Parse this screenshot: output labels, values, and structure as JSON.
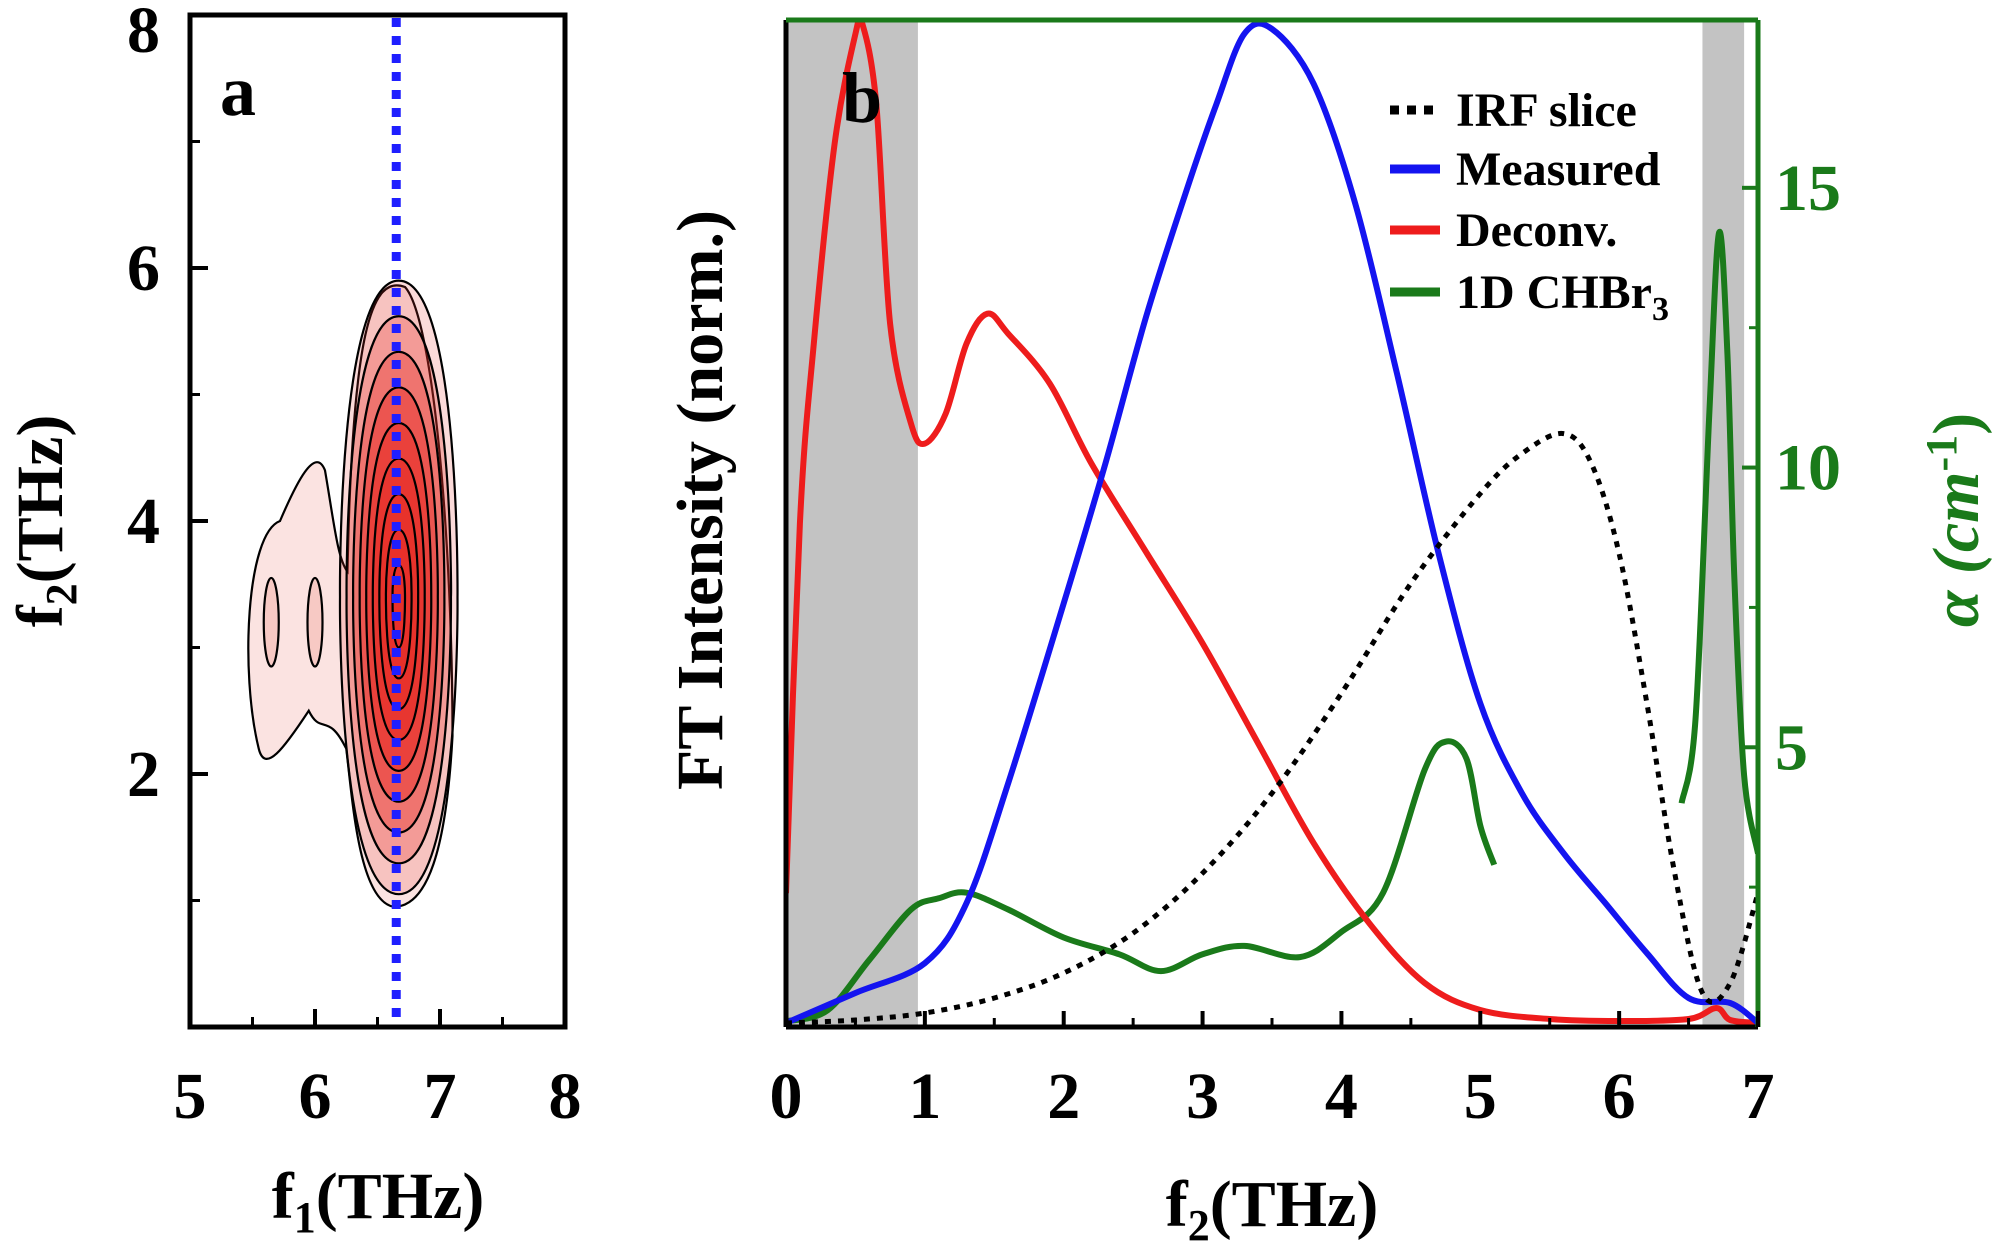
{
  "panel_a": {
    "letter": "a",
    "xlabel": {
      "main": "f",
      "sub": "1",
      "rest": "(THz)"
    },
    "ylabel": {
      "main": "f",
      "sub": "2",
      "rest": "(THz)"
    },
    "xticks": [
      "5",
      "6",
      "7",
      "8"
    ],
    "yticks": [
      "2",
      "4",
      "6",
      "8"
    ]
  },
  "panel_b": {
    "letter": "b",
    "xlabel": {
      "main": "f",
      "sub": "2",
      "rest": "(THz)"
    },
    "ylabel_left": "FT Intensity (norm.)",
    "ylabel_right": {
      "main": "α (cm",
      "sup": "-1",
      "rest": ")"
    },
    "xticks": [
      "0",
      "1",
      "2",
      "3",
      "4",
      "5",
      "6",
      "7"
    ],
    "yticks_right": [
      "5",
      "10",
      "15"
    ],
    "legend": [
      {
        "label": "IRF slice"
      },
      {
        "label": "Measured"
      },
      {
        "label": "Deconv."
      },
      {
        "label": "1D CHBr",
        "sub": "3"
      }
    ]
  },
  "chart_data": [
    {
      "type": "contour",
      "panel": "a",
      "xlim": [
        5,
        8
      ],
      "ylim": [
        0,
        8
      ],
      "x_minor_ticks": [
        5.5,
        6.5,
        7.5
      ],
      "y_minor_ticks": [
        1,
        3,
        5,
        7
      ],
      "cut_line": {
        "x": 6.65,
        "style": "dotted",
        "color": "#1f1fff"
      },
      "main_peak": {
        "x": 6.65,
        "y": 3.3
      },
      "side_features": [
        {
          "x": 5.65,
          "y": 3.2
        },
        {
          "x": 6.0,
          "y": 3.2
        }
      ],
      "contour_fill_color": "#e8302a",
      "contour_line_color": "#000000"
    },
    {
      "type": "line",
      "panel": "b",
      "xlim": [
        0,
        7
      ],
      "ylim_left": [
        0,
        1
      ],
      "ylim_right": [
        0,
        18
      ],
      "y_right_minor_ticks": [
        2.5,
        7.5,
        12.5
      ],
      "shaded_regions": [
        [
          0,
          0.95
        ],
        [
          6.6,
          6.9
        ]
      ],
      "series": [
        {
          "name": "IRF slice",
          "axis": "left",
          "color": "#000000",
          "style": "dotted",
          "x": [
            0,
            0.5,
            1.0,
            1.5,
            2.0,
            2.5,
            3.0,
            3.5,
            4.0,
            4.5,
            5.0,
            5.3,
            5.6,
            5.8,
            6.0,
            6.2,
            6.4,
            6.6,
            6.8,
            7.0
          ],
          "y": [
            0,
            0.003,
            0.01,
            0.025,
            0.05,
            0.09,
            0.15,
            0.23,
            0.33,
            0.44,
            0.53,
            0.57,
            0.59,
            0.56,
            0.47,
            0.32,
            0.15,
            0.03,
            0.04,
            0.13
          ]
        },
        {
          "name": "Measured",
          "axis": "left",
          "color": "#1414f0",
          "style": "solid",
          "x": [
            0,
            0.5,
            1.0,
            1.3,
            1.6,
            2.0,
            2.3,
            2.6,
            2.9,
            3.1,
            3.3,
            3.5,
            3.8,
            4.1,
            4.4,
            4.7,
            5.0,
            5.3,
            5.6,
            5.9,
            6.2,
            6.5,
            6.8,
            7.0
          ],
          "y": [
            0,
            0.03,
            0.06,
            0.12,
            0.24,
            0.42,
            0.56,
            0.71,
            0.84,
            0.92,
            0.99,
            0.995,
            0.94,
            0.82,
            0.65,
            0.47,
            0.32,
            0.23,
            0.17,
            0.12,
            0.07,
            0.025,
            0.02,
            0.0
          ]
        },
        {
          "name": "Deconv.",
          "axis": "left",
          "color": "#ee1c1c",
          "style": "solid",
          "x": [
            0,
            0.1,
            0.2,
            0.35,
            0.5,
            0.55,
            0.65,
            0.75,
            0.9,
            1.0,
            1.15,
            1.3,
            1.45,
            1.6,
            1.9,
            2.2,
            2.6,
            3.0,
            3.4,
            3.8,
            4.2,
            4.6,
            5.0,
            5.5,
            6.0,
            6.5,
            6.7,
            6.8,
            7.0
          ],
          "y": [
            0.13,
            0.5,
            0.68,
            0.88,
            0.99,
            1.0,
            0.92,
            0.7,
            0.6,
            0.58,
            0.61,
            0.68,
            0.71,
            0.69,
            0.64,
            0.56,
            0.47,
            0.38,
            0.28,
            0.18,
            0.1,
            0.04,
            0.013,
            0.004,
            0.002,
            0.004,
            0.015,
            0.003,
            0.0
          ]
        },
        {
          "name": "1D CHBr3",
          "axis": "right",
          "color": "#1a7a1a",
          "style": "solid",
          "segments": [
            {
              "x": [
                0,
                0.3,
                0.6,
                0.9,
                1.1,
                1.3,
                1.6,
                2.0,
                2.4,
                2.7,
                3.0,
                3.3,
                3.7,
                4.0,
                4.3,
                4.6,
                4.75,
                4.9,
                5.0,
                5.1
              ],
              "y": [
                0.1,
                0.3,
                1.2,
                2.1,
                2.3,
                2.4,
                2.1,
                1.6,
                1.3,
                1.0,
                1.3,
                1.45,
                1.25,
                1.7,
                2.4,
                4.6,
                5.1,
                4.8,
                3.6,
                2.9
              ]
            },
            {
              "x": [
                6.45,
                6.55,
                6.65,
                6.72,
                6.78,
                6.83,
                6.9,
                7.0
              ],
              "y": [
                4.0,
                5.5,
                11.0,
                14.2,
                12.0,
                8.0,
                4.5,
                3.1
              ]
            }
          ]
        }
      ]
    }
  ]
}
